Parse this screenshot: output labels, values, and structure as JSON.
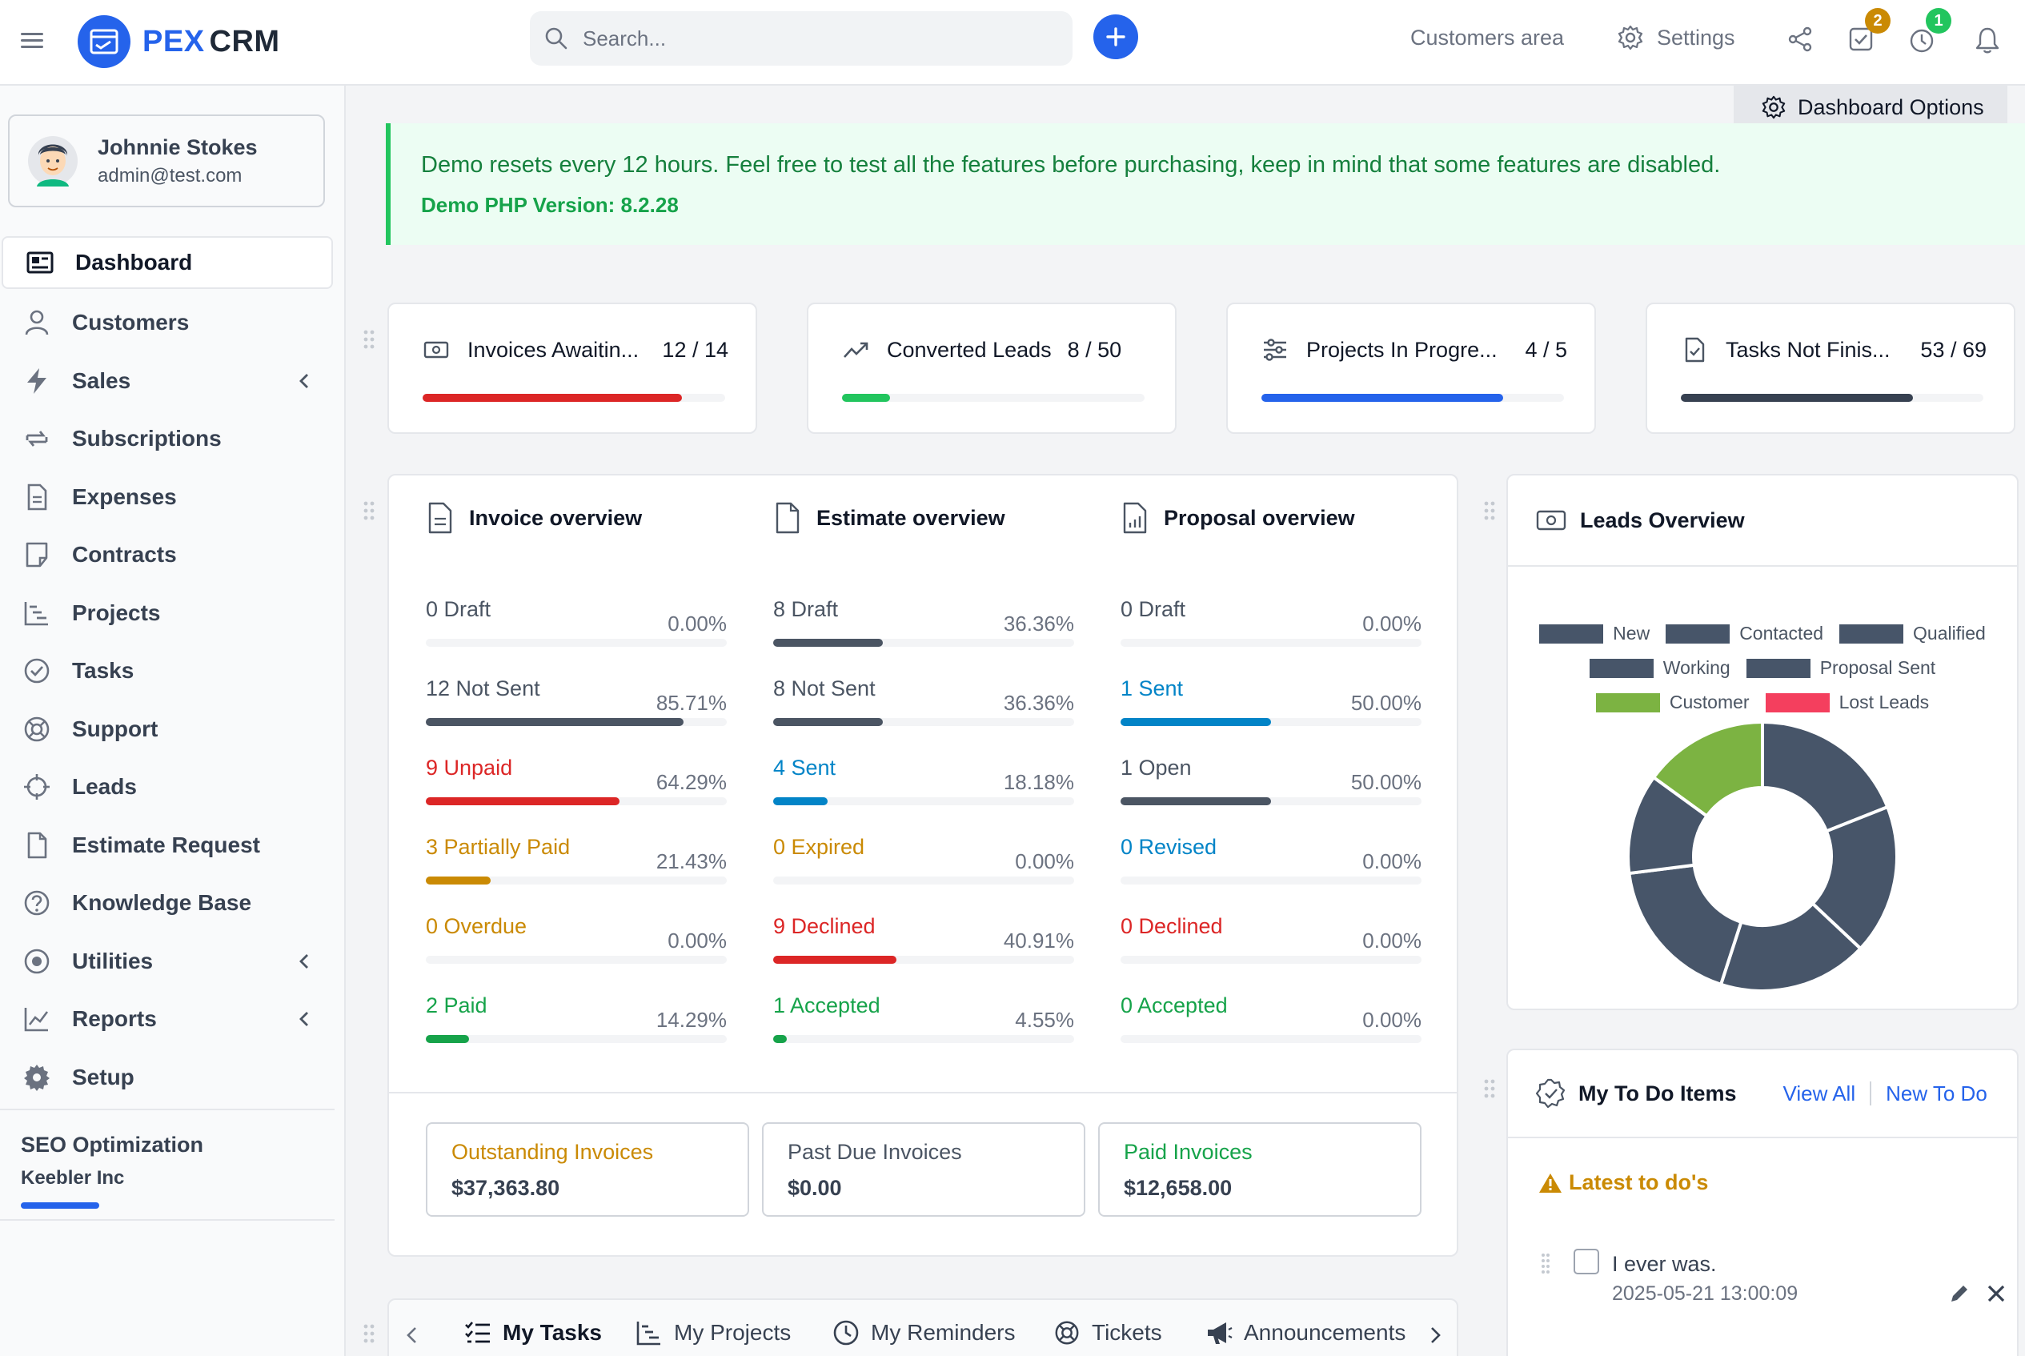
{
  "app": {
    "logo_primary": "PEX",
    "logo_secondary": "CRM"
  },
  "topbar": {
    "search_placeholder": "Search...",
    "customers_area": "Customers area",
    "settings": "Settings",
    "tasks_badge": "2",
    "timer_badge": "1"
  },
  "user": {
    "name": "Johnnie Stokes",
    "email": "admin@test.com"
  },
  "sidebar": {
    "items": [
      {
        "label": "Dashboard"
      },
      {
        "label": "Customers"
      },
      {
        "label": "Sales"
      },
      {
        "label": "Subscriptions"
      },
      {
        "label": "Expenses"
      },
      {
        "label": "Contracts"
      },
      {
        "label": "Projects"
      },
      {
        "label": "Tasks"
      },
      {
        "label": "Support"
      },
      {
        "label": "Leads"
      },
      {
        "label": "Estimate Request"
      },
      {
        "label": "Knowledge Base"
      },
      {
        "label": "Utilities"
      },
      {
        "label": "Reports"
      },
      {
        "label": "Setup"
      }
    ],
    "pinned_project": {
      "title": "SEO Optimization",
      "client": "Keebler Inc"
    }
  },
  "dashboard_options": "Dashboard Options",
  "alert": {
    "message": "Demo resets every 12 hours. Feel free to test all the features before purchasing, keep in mind that some features are disabled.",
    "php_version": "Demo PHP Version: 8.2.28"
  },
  "stats": [
    {
      "title": "Invoices Awaitin...",
      "value": "12 / 14",
      "progress": 0.857,
      "color": "#dc2626"
    },
    {
      "title": "Converted Leads",
      "value": "8 / 50",
      "progress": 0.16,
      "color": "#22c55e"
    },
    {
      "title": "Projects In Progre...",
      "value": "4 / 5",
      "progress": 0.8,
      "color": "#2563eb"
    },
    {
      "title": "Tasks Not Finis...",
      "value": "53 / 69",
      "progress": 0.768,
      "color": "#374151"
    }
  ],
  "invoice_overview": {
    "title": "Invoice overview",
    "rows": [
      {
        "label": "0 Draft",
        "pct": "0.00%",
        "value": 0,
        "color": "#4b5563"
      },
      {
        "label": "12 Not Sent",
        "pct": "85.71%",
        "value": 85.71,
        "color": "#4b5563"
      },
      {
        "label": "9 Unpaid",
        "pct": "64.29%",
        "value": 64.29,
        "color": "#dc2626"
      },
      {
        "label": "3 Partially Paid",
        "pct": "21.43%",
        "value": 21.43,
        "color": "#ca8a04"
      },
      {
        "label": "0 Overdue",
        "pct": "0.00%",
        "value": 0,
        "color": "#ca8a04"
      },
      {
        "label": "2 Paid",
        "pct": "14.29%",
        "value": 14.29,
        "color": "#16a34a"
      }
    ]
  },
  "estimate_overview": {
    "title": "Estimate overview",
    "rows": [
      {
        "label": "8 Draft",
        "pct": "36.36%",
        "value": 36.36,
        "color": "#4b5563"
      },
      {
        "label": "8 Not Sent",
        "pct": "36.36%",
        "value": 36.36,
        "color": "#4b5563"
      },
      {
        "label": "4 Sent",
        "pct": "18.18%",
        "value": 18.18,
        "color": "#0284c7"
      },
      {
        "label": "0 Expired",
        "pct": "0.00%",
        "value": 0,
        "color": "#ca8a04"
      },
      {
        "label": "9 Declined",
        "pct": "40.91%",
        "value": 40.91,
        "color": "#dc2626"
      },
      {
        "label": "1 Accepted",
        "pct": "4.55%",
        "value": 4.55,
        "color": "#16a34a"
      }
    ]
  },
  "proposal_overview": {
    "title": "Proposal overview",
    "rows": [
      {
        "label": "0 Draft",
        "pct": "0.00%",
        "value": 0,
        "color": "#4b5563"
      },
      {
        "label": "1 Sent",
        "pct": "50.00%",
        "value": 50,
        "color": "#0284c7"
      },
      {
        "label": "1 Open",
        "pct": "50.00%",
        "value": 50,
        "color": "#4b5563"
      },
      {
        "label": "0 Revised",
        "pct": "0.00%",
        "value": 0,
        "color": "#0284c7"
      },
      {
        "label": "0 Declined",
        "pct": "0.00%",
        "value": 0,
        "color": "#dc2626"
      },
      {
        "label": "0 Accepted",
        "pct": "0.00%",
        "value": 0,
        "color": "#16a34a"
      }
    ]
  },
  "summary": [
    {
      "label": "Outstanding Invoices",
      "value": "$37,363.80",
      "color": "#ca8a04"
    },
    {
      "label": "Past Due Invoices",
      "value": "$0.00",
      "color": "#4b5563"
    },
    {
      "label": "Paid Invoices",
      "value": "$12,658.00",
      "color": "#16a34a"
    }
  ],
  "leads_overview": {
    "title": "Leads Overview",
    "legend": [
      {
        "label": "New",
        "color": "#475569"
      },
      {
        "label": "Contacted",
        "color": "#475569"
      },
      {
        "label": "Qualified",
        "color": "#475569"
      },
      {
        "label": "Working",
        "color": "#475569"
      },
      {
        "label": "Proposal Sent",
        "color": "#475569"
      },
      {
        "label": "Customer",
        "color": "#7cb342"
      },
      {
        "label": "Lost Leads",
        "color": "#f43f5e"
      }
    ],
    "segments": [
      {
        "label": "Customer",
        "value": 15,
        "color": "#7cb342"
      },
      {
        "label": "New",
        "value": 19,
        "color": "#475569"
      },
      {
        "label": "Contacted",
        "value": 18,
        "color": "#475569"
      },
      {
        "label": "Qualified",
        "value": 18,
        "color": "#475569"
      },
      {
        "label": "Working",
        "value": 18,
        "color": "#475569"
      },
      {
        "label": "Proposal Sent",
        "value": 12,
        "color": "#475569"
      }
    ]
  },
  "todo": {
    "title": "My To Do Items",
    "view_all": "View All",
    "new_todo": "New To Do",
    "section": "Latest to do's",
    "items": [
      {
        "text": "I ever was.",
        "date": "2025-05-21 13:00:09"
      }
    ]
  },
  "bottom_tabs": [
    {
      "label": "My Tasks"
    },
    {
      "label": "My Projects"
    },
    {
      "label": "My Reminders"
    },
    {
      "label": "Tickets"
    },
    {
      "label": "Announcements"
    }
  ]
}
